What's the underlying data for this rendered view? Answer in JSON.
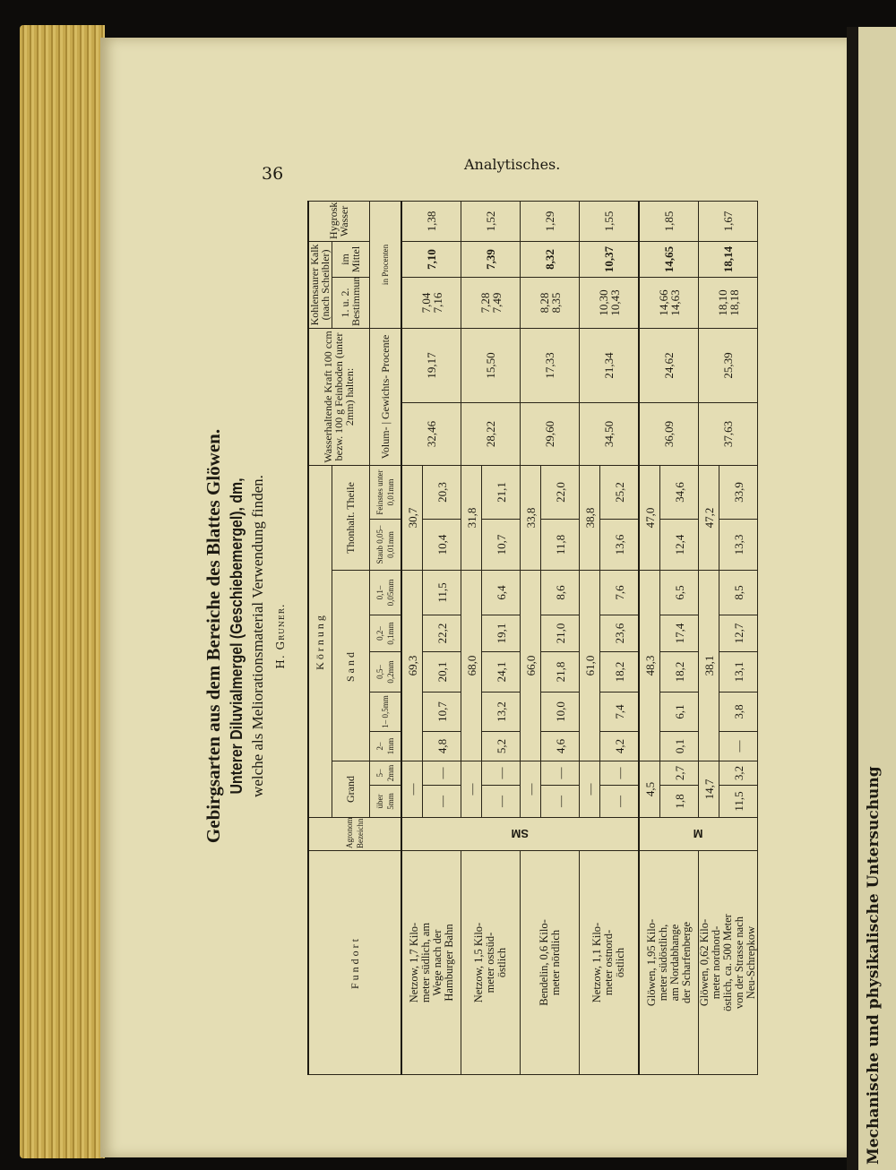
{
  "header": {
    "page_number": "36",
    "running_title": "Analytisches."
  },
  "next_page": {
    "text": "Mechanische und physikalische Untersuchung"
  },
  "title": {
    "line1": "Gebirgsarten aus dem Bereiche des Blattes Glöwen.",
    "line2": "Unterer Diluvialmergel (Geschiebemergel), dm,",
    "line3": "welche als Meliorationsmaterial Verwendung finden.",
    "author": "H. Gruner."
  },
  "table": {
    "headers": {
      "fundort": "Fundort",
      "agronom": "Agronom. Bezeichn.",
      "koernung": "Körnung",
      "grand": "Grand",
      "sand": "Sand",
      "thon": "Thonhalt. Theile",
      "grain_sizes": [
        "über 5mm",
        "5– 2mm",
        "2– 1mm",
        "1– 0,5mm",
        "0,5– 0,2mm",
        "0,2– 0,1mm",
        "0,1– 0,05mm",
        "Staub 0,05– 0,01mm",
        "Feinstes unter 0,01mm"
      ],
      "wasser": "Wasserhaltende Kraft 100 ccm bezw. 100 g Feinboden (unter 2mm) halten:",
      "wasser_sub": "Volum- | Gewichts- Procente",
      "kalk": "Kohlensaurer Kalk (nach Scheibler)",
      "kalk_best": "1. u. 2. Bestimmung",
      "kalk_mittel": "im Mittel",
      "hygro": "Hygroskop. Wasser",
      "procenten": "in Procenten"
    },
    "agronom_groups": [
      {
        "label": "SM",
        "rows": 4
      },
      {
        "label": "M",
        "rows": 2
      }
    ],
    "rows": [
      {
        "fundort": "Netzow, 1,7 Kilo-\nmeter südlich, am\nWege nach der\nHamburger Bahn",
        "grand_total": "—",
        "grand": [
          "—",
          "—"
        ],
        "sand_total": "69,3",
        "sand": [
          "4,8",
          "10,7",
          "20,1",
          "22,2",
          "11,5"
        ],
        "thon_total": "30,7",
        "thon": [
          "10,4",
          "20,3"
        ],
        "volum": "32,46",
        "gewicht": "19,17",
        "kalk": [
          "7,04",
          "7,16"
        ],
        "kalk_mittel": "7,10",
        "hygro": "1,38"
      },
      {
        "fundort": "Netzow, 1,5 Kilo-\nmeter ostsüd-\nöstlich",
        "grand_total": "—",
        "grand": [
          "—",
          "—"
        ],
        "sand_total": "68,0",
        "sand": [
          "5,2",
          "13,2",
          "24,1",
          "19,1",
          "6,4"
        ],
        "thon_total": "31,8",
        "thon": [
          "10,7",
          "21,1"
        ],
        "volum": "28,22",
        "gewicht": "15,50",
        "kalk": [
          "7,28",
          "7,49"
        ],
        "kalk_mittel": "7,39",
        "hygro": "1,52"
      },
      {
        "fundort": "Bendelin, 0,6 Kilo-\nmeter nördlich",
        "grand_total": "—",
        "grand": [
          "—",
          "—"
        ],
        "sand_total": "66,0",
        "sand": [
          "4,6",
          "10,0",
          "21,8",
          "21,0",
          "8,6"
        ],
        "thon_total": "33,8",
        "thon": [
          "11,8",
          "22,0"
        ],
        "volum": "29,60",
        "gewicht": "17,33",
        "kalk": [
          "8,28",
          "8,35"
        ],
        "kalk_mittel": "8,32",
        "hygro": "1,29"
      },
      {
        "fundort": "Netzow, 1,1 Kilo-\nmeter ostnord-\nöstlich",
        "grand_total": "—",
        "grand": [
          "—",
          "—"
        ],
        "sand_total": "61,0",
        "sand": [
          "4,2",
          "7,4",
          "18,2",
          "23,6",
          "7,6"
        ],
        "thon_total": "38,8",
        "thon": [
          "13,6",
          "25,2"
        ],
        "volum": "34,50",
        "gewicht": "21,34",
        "kalk": [
          "10,30",
          "10,43"
        ],
        "kalk_mittel": "10,37",
        "hygro": "1,55"
      },
      {
        "fundort": "Glöwen, 1,95 Kilo-\nmeter südöstlich,\nam Nordabhange\nder Scharfenberge",
        "grand_total": "4,5",
        "grand": [
          "1,8",
          "2,7"
        ],
        "sand_total": "48,3",
        "sand": [
          "0,1",
          "6,1",
          "18,2",
          "17,4",
          "6,5"
        ],
        "thon_total": "47,0",
        "thon": [
          "12,4",
          "34,6"
        ],
        "volum": "36,09",
        "gewicht": "24,62",
        "kalk": [
          "14,66",
          "14,63"
        ],
        "kalk_mittel": "14,65",
        "hygro": "1,85"
      },
      {
        "fundort": "Glöwen, 0,62 Kilo-\nmeter nordnord-\nöstlich, ca. 500 Meter\nvon der Strasse nach\nNeu-Schrepkow",
        "grand_total": "14,7",
        "grand": [
          "11,5",
          "3,2"
        ],
        "sand_total": "38,1",
        "sand": [
          "—",
          "3,8",
          "13,1",
          "12,7",
          "8,5"
        ],
        "thon_total": "47,2",
        "thon": [
          "13,3",
          "33,9"
        ],
        "volum": "37,63",
        "gewicht": "25,39",
        "kalk": [
          "18,10",
          "18,18"
        ],
        "kalk_mittel": "18,14",
        "hygro": "1,67"
      }
    ]
  }
}
